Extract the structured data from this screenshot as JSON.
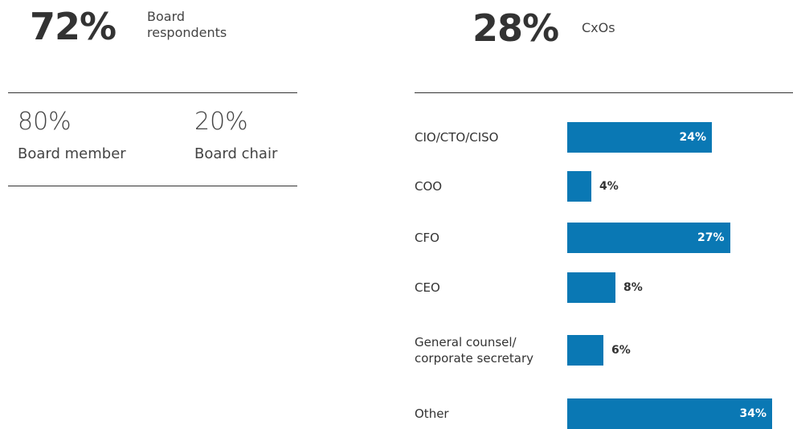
{
  "board": {
    "share": "72%",
    "label": "Board respondents",
    "breakdown": [
      {
        "share": "80%",
        "label": "Board member"
      },
      {
        "share": "20%",
        "label": "Board chair"
      }
    ]
  },
  "cxo": {
    "share": "28%",
    "label": "CxOs"
  },
  "chart_data": {
    "type": "barh",
    "categories": [
      "CIO/CTO/CISO",
      "COO",
      "CFO",
      "CEO",
      "General counsel/ corporate secretary",
      "Other"
    ],
    "values": [
      24,
      4,
      27,
      8,
      6,
      34
    ],
    "value_labels": [
      "24%",
      "4%",
      "27%",
      "8%",
      "6%",
      "34%"
    ],
    "color": "#0a78b4"
  }
}
